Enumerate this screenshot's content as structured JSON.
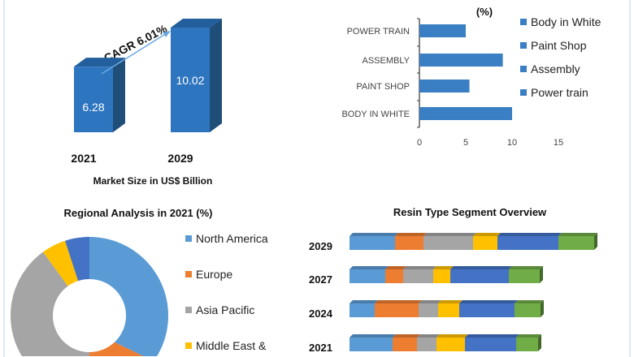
{
  "chart_data": [
    {
      "type": "bar",
      "categories": [
        "2021",
        "2029"
      ],
      "values": [
        6.28,
        10.02
      ],
      "data_labels": [
        "6.28",
        "10.02"
      ],
      "xlabel": "Market Size in US$ Billion",
      "annotation": "CAGR 6.01%",
      "colors": {
        "front": "#2e75c0",
        "side": "#1f4e79",
        "top": "#235f9c"
      }
    },
    {
      "type": "bar",
      "orientation": "horizontal",
      "title": "(%)",
      "categories": [
        "POWER TRAIN",
        "ASSEMBLY",
        "PAINT SHOP",
        "BODY IN WHITE"
      ],
      "values": [
        5,
        9,
        5.4,
        10
      ],
      "xlim": [
        0,
        15
      ],
      "xticks": [
        "0",
        "5",
        "10",
        "15"
      ],
      "legend": [
        "Body in White",
        "Paint Shop",
        "Assembly",
        "Power train"
      ],
      "legend_position": "right",
      "color": "#3a7fc4"
    },
    {
      "type": "pie",
      "donut": true,
      "title": "Regional Analysis in 2021 (%)",
      "slices": [
        {
          "name": "North America",
          "value": 38,
          "color": "#5b9bd5"
        },
        {
          "name": "Europe",
          "value": 12,
          "color": "#ed7d31"
        },
        {
          "name": "Asia Pacific",
          "value": 40,
          "color": "#a5a5a5"
        },
        {
          "name": "Middle East &",
          "value": 5,
          "color": "#ffc000"
        },
        {
          "name": "",
          "value": 5,
          "color": "#4472c4"
        }
      ],
      "legend_position": "right"
    },
    {
      "type": "bar",
      "stacked": true,
      "orientation": "horizontal",
      "title": "Resin Type Segment Overview",
      "categories": [
        "2029",
        "2027",
        "2024",
        "2021"
      ],
      "colors": [
        "#5b9bd5",
        "#ed7d31",
        "#a5a5a5",
        "#ffc000",
        "#4472c4",
        "#70ad47"
      ],
      "series": [
        {
          "values": [
            56,
            44,
            31,
            53
          ]
        },
        {
          "values": [
            35,
            22,
            54,
            30
          ]
        },
        {
          "values": [
            61,
            37,
            24,
            24
          ]
        },
        {
          "values": [
            30,
            21,
            26,
            35
          ]
        },
        {
          "values": [
            75,
            72,
            68,
            63
          ]
        },
        {
          "values": [
            44,
            38,
            32,
            27
          ]
        }
      ]
    }
  ]
}
